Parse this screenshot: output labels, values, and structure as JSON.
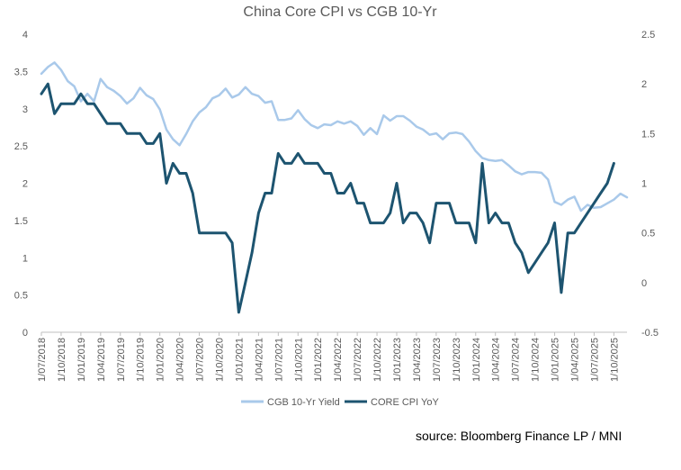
{
  "chart_data": {
    "type": "line",
    "title": "China Core CPI vs CGB 10-Yr",
    "source": "source: Bloomberg Finance LP /  MNI",
    "left_axis": {
      "min": 0,
      "max": 4,
      "ticks": [
        "0",
        "0.5",
        "1",
        "1.5",
        "2",
        "2.5",
        "3",
        "3.5",
        "4"
      ],
      "tick_values": [
        0,
        0.5,
        1,
        1.5,
        2,
        2.5,
        3,
        3.5,
        4
      ]
    },
    "right_axis": {
      "min": -0.5,
      "max": 2.5,
      "ticks": [
        "-0.5",
        "0",
        "0.5",
        "1",
        "1.5",
        "2",
        "2.5"
      ],
      "tick_values": [
        -0.5,
        0,
        0.5,
        1,
        1.5,
        2,
        2.5
      ]
    },
    "x_tick_labels": [
      "1/07/2018",
      "1/10/2018",
      "1/01/2019",
      "1/04/2019",
      "1/07/2019",
      "1/10/2019",
      "1/01/2020",
      "1/04/2020",
      "1/07/2020",
      "1/10/2020",
      "1/01/2021",
      "1/04/2021",
      "1/07/2021",
      "1/10/2021",
      "1/01/2022",
      "1/04/2022",
      "1/07/2022",
      "1/10/2022",
      "1/01/2023",
      "1/04/2023",
      "1/07/2023",
      "1/10/2023",
      "1/01/2024",
      "1/04/2024",
      "1/07/2024",
      "1/10/2024",
      "1/01/2025",
      "1/04/2025",
      "1/07/2025",
      "1/10/2025"
    ],
    "legend": {
      "position": "bottom",
      "entries": [
        "CGB 10-Yr Yield",
        "CORE CPI YoY"
      ]
    },
    "colors": {
      "cgb": "#a9c9ea",
      "core": "#1d5470",
      "axis_text": "#595959",
      "title": "#595959"
    },
    "series": [
      {
        "name": "CGB 10-Yr Yield",
        "axis": "left",
        "values": [
          3.47,
          3.56,
          3.62,
          3.52,
          3.37,
          3.3,
          3.1,
          3.2,
          3.1,
          3.4,
          3.29,
          3.24,
          3.17,
          3.07,
          3.14,
          3.28,
          3.18,
          3.13,
          2.99,
          2.72,
          2.59,
          2.51,
          2.66,
          2.83,
          2.95,
          3.02,
          3.14,
          3.18,
          3.27,
          3.15,
          3.19,
          3.29,
          3.2,
          3.17,
          3.08,
          3.1,
          2.85,
          2.85,
          2.87,
          2.98,
          2.86,
          2.78,
          2.74,
          2.79,
          2.78,
          2.83,
          2.8,
          2.83,
          2.77,
          2.65,
          2.74,
          2.66,
          2.91,
          2.84,
          2.9,
          2.9,
          2.84,
          2.76,
          2.72,
          2.65,
          2.67,
          2.59,
          2.67,
          2.68,
          2.66,
          2.56,
          2.43,
          2.34,
          2.31,
          2.3,
          2.31,
          2.24,
          2.16,
          2.12,
          2.15,
          2.15,
          2.14,
          2.05,
          1.75,
          1.71,
          1.78,
          1.82,
          1.63,
          1.71,
          1.67,
          1.68,
          1.73,
          1.78,
          1.86,
          1.81
        ]
      },
      {
        "name": "CORE CPI YoY",
        "axis": "right",
        "values": [
          1.9,
          2.0,
          1.7,
          1.8,
          1.8,
          1.8,
          1.9,
          1.8,
          1.8,
          1.7,
          1.6,
          1.6,
          1.6,
          1.5,
          1.5,
          1.5,
          1.4,
          1.4,
          1.5,
          1.0,
          1.2,
          1.1,
          1.1,
          0.9,
          0.5,
          0.5,
          0.5,
          0.5,
          0.5,
          0.4,
          -0.3,
          0.0,
          0.3,
          0.7,
          0.9,
          0.9,
          1.3,
          1.2,
          1.2,
          1.3,
          1.2,
          1.2,
          1.2,
          1.1,
          1.1,
          0.9,
          0.9,
          1.0,
          0.8,
          0.8,
          0.6,
          0.6,
          0.6,
          0.7,
          1.0,
          0.6,
          0.7,
          0.7,
          0.6,
          0.4,
          0.8,
          0.8,
          0.8,
          0.6,
          0.6,
          0.6,
          0.4,
          1.2,
          0.6,
          0.7,
          0.6,
          0.6,
          0.4,
          0.3,
          0.1,
          0.2,
          0.3,
          0.4,
          0.6,
          -0.1,
          0.5,
          0.5,
          0.6,
          0.7,
          0.8,
          0.9,
          1.0,
          1.2
        ]
      }
    ]
  }
}
